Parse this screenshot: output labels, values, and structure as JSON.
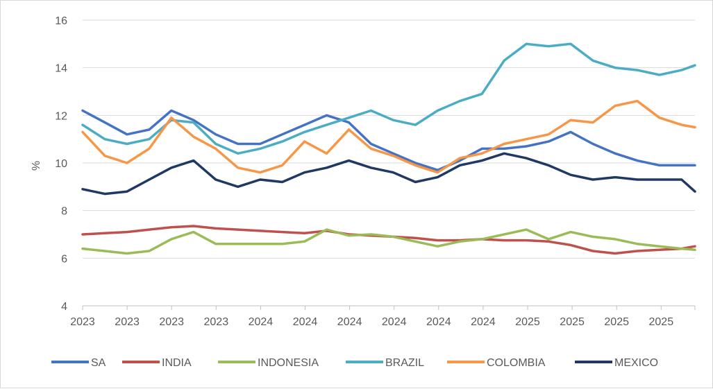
{
  "chart_data": {
    "type": "line",
    "title": "",
    "ylabel": "%",
    "xlabel": "",
    "ylim": [
      4,
      16
    ],
    "y_ticks": [
      4,
      6,
      8,
      10,
      12,
      14,
      16
    ],
    "x_tick_labels": [
      "2023",
      "2023",
      "2023",
      "2023",
      "2024",
      "2024",
      "2024",
      "2024",
      "2024",
      "2024",
      "2025",
      "2025",
      "2025",
      "2025"
    ],
    "grid": "horizontal",
    "legend_position": "bottom",
    "x": [
      0,
      0.5,
      1,
      1.5,
      2,
      2.5,
      3,
      3.5,
      4,
      4.5,
      5,
      5.5,
      6,
      6.5,
      7,
      7.5,
      8,
      8.5,
      9,
      9.5,
      10,
      10.5,
      11,
      11.5,
      12,
      12.5,
      13,
      13.5,
      13.8
    ],
    "series": [
      {
        "name": "SA",
        "color": "#4472c4",
        "values": [
          12.2,
          11.7,
          11.2,
          11.4,
          12.2,
          11.8,
          11.2,
          10.8,
          10.8,
          11.2,
          11.6,
          12.0,
          11.7,
          10.8,
          10.4,
          10.0,
          9.7,
          10.1,
          10.6,
          10.6,
          10.7,
          10.9,
          11.3,
          10.8,
          10.4,
          10.1,
          9.9,
          9.9,
          9.9
        ]
      },
      {
        "name": "INDIA",
        "color": "#c0504d",
        "values": [
          7.0,
          7.05,
          7.1,
          7.2,
          7.3,
          7.35,
          7.25,
          7.2,
          7.15,
          7.1,
          7.05,
          7.15,
          7.0,
          6.95,
          6.9,
          6.85,
          6.75,
          6.75,
          6.8,
          6.75,
          6.75,
          6.7,
          6.55,
          6.3,
          6.2,
          6.3,
          6.35,
          6.4,
          6.5
        ]
      },
      {
        "name": "INDONESIA",
        "color": "#9bbb59",
        "values": [
          6.4,
          6.3,
          6.2,
          6.3,
          6.8,
          7.1,
          6.6,
          6.6,
          6.6,
          6.6,
          6.7,
          7.2,
          6.95,
          7.0,
          6.9,
          6.7,
          6.5,
          6.7,
          6.8,
          7.0,
          7.2,
          6.8,
          7.1,
          6.9,
          6.8,
          6.6,
          6.5,
          6.4,
          6.35
        ]
      },
      {
        "name": "BRAZIL",
        "color": "#4bacc6",
        "values": [
          11.6,
          11.0,
          10.8,
          11.0,
          11.8,
          11.7,
          10.8,
          10.4,
          10.6,
          10.9,
          11.3,
          11.6,
          11.9,
          12.2,
          11.8,
          11.6,
          12.2,
          12.6,
          12.9,
          14.3,
          15.0,
          14.9,
          15.0,
          14.3,
          14.0,
          13.9,
          13.7,
          13.9,
          14.1
        ]
      },
      {
        "name": "COLOMBIA",
        "color": "#f79646",
        "values": [
          11.3,
          10.3,
          10.0,
          10.6,
          11.9,
          11.1,
          10.6,
          9.8,
          9.6,
          9.9,
          10.9,
          10.4,
          11.4,
          10.6,
          10.3,
          9.9,
          9.6,
          10.2,
          10.4,
          10.8,
          11.0,
          11.2,
          11.8,
          11.7,
          12.4,
          12.6,
          11.9,
          11.6,
          11.5
        ]
      },
      {
        "name": "MEXICO",
        "color": "#1f3864",
        "values": [
          8.9,
          8.7,
          8.8,
          9.3,
          9.8,
          10.1,
          9.3,
          9.0,
          9.3,
          9.2,
          9.6,
          9.8,
          10.1,
          9.8,
          9.6,
          9.2,
          9.4,
          9.9,
          10.1,
          10.4,
          10.2,
          9.9,
          9.5,
          9.3,
          9.4,
          9.3,
          9.3,
          9.3,
          8.8
        ]
      }
    ]
  }
}
